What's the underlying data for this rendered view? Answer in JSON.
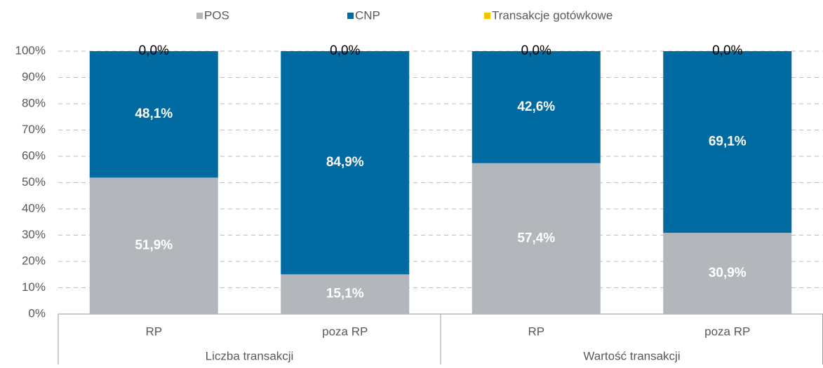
{
  "chart_data": {
    "type": "stacked_bar",
    "categories": [
      "RP",
      "poza RP",
      "RP",
      "poza RP"
    ],
    "groups": [
      "Liczba transakcji",
      "Wartość transakcji"
    ],
    "series": [
      {
        "name": "POS",
        "color": "#b3b7bb",
        "values": [
          51.9,
          15.1,
          57.4,
          30.9
        ],
        "value_labels": [
          "51,9%",
          "15,1%",
          "57,4%",
          "30,9%"
        ]
      },
      {
        "name": "CNP",
        "color": "#006aa1",
        "values": [
          48.1,
          84.9,
          42.6,
          69.1
        ],
        "value_labels": [
          "48,1%",
          "84,9%",
          "42,6%",
          "69,1%"
        ]
      },
      {
        "name": "Transakcje gotówkowe",
        "color": "#f2c500",
        "values": [
          0,
          0,
          0,
          0
        ],
        "value_labels": [
          "0,0%",
          "0,0%",
          "0,0%",
          "0,0%"
        ]
      }
    ],
    "ylim": [
      0,
      100
    ],
    "yticks": [
      {
        "value": 0,
        "label": "0%"
      },
      {
        "value": 10,
        "label": "10%"
      },
      {
        "value": 20,
        "label": "20%"
      },
      {
        "value": 30,
        "label": "30%"
      },
      {
        "value": 40,
        "label": "40%"
      },
      {
        "value": 50,
        "label": "50%"
      },
      {
        "value": 60,
        "label": "60%"
      },
      {
        "value": 70,
        "label": "70%"
      },
      {
        "value": 80,
        "label": "80%"
      },
      {
        "value": 90,
        "label": "90%"
      },
      {
        "value": 100,
        "label": "100%"
      }
    ],
    "grid": true,
    "legend": "top"
  }
}
